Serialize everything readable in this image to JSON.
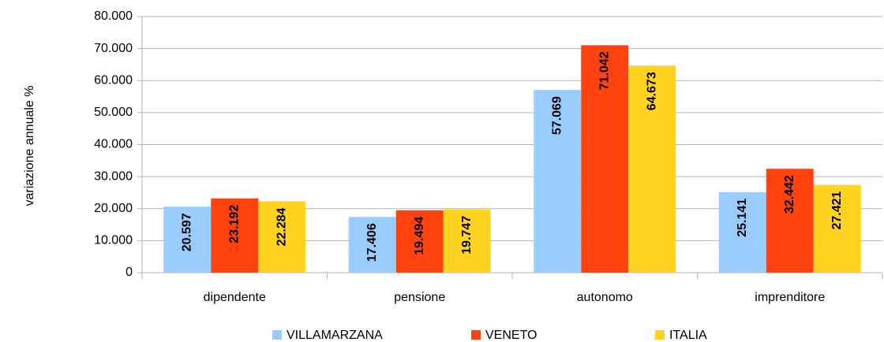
{
  "chart_data": {
    "type": "bar",
    "y_label": "variazione annuale %",
    "categories": [
      "dipendente",
      "pensione",
      "autonomo",
      "imprenditore"
    ],
    "series": [
      {
        "name": "VILLAMARZANA",
        "color": "#99ccff",
        "values": [
          20597,
          17406,
          57069,
          25141
        ],
        "value_labels": [
          "20.597",
          "17.406",
          "57.069",
          "25.141"
        ]
      },
      {
        "name": "VENETO",
        "color": "#ff420e",
        "values": [
          23192,
          19494,
          71042,
          32442
        ],
        "value_labels": [
          "23.192",
          "19.494",
          "71.042",
          "32.442"
        ]
      },
      {
        "name": "ITALIA",
        "color": "#ffd320",
        "values": [
          22284,
          19747,
          64673,
          27421
        ],
        "value_labels": [
          "22.284",
          "19.747",
          "64.673",
          "27.421"
        ]
      }
    ],
    "ylim": [
      0,
      80000
    ],
    "yticks": [
      0,
      {
        "value": 10000,
        "label": "10.000"
      },
      {
        "value": 20000,
        "label": "20.000"
      },
      {
        "value": 30000,
        "label": "30.000"
      },
      {
        "value": 40000,
        "label": "40.000"
      },
      {
        "value": 50000,
        "label": "50.000"
      },
      {
        "value": 60000,
        "label": "60.000"
      },
      {
        "value": 70000,
        "label": "70.000"
      },
      {
        "value": 80000,
        "label": "80.000"
      }
    ],
    "grid": true
  }
}
